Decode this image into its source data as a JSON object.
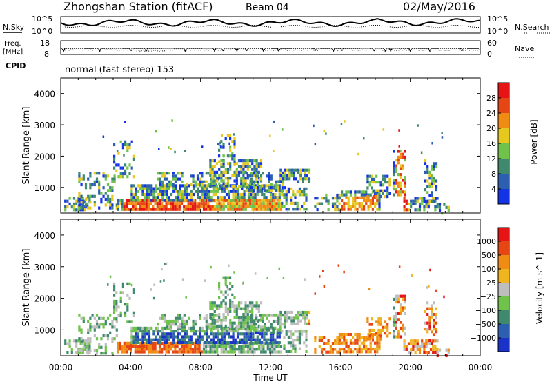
{
  "header": {
    "station": "Zhongshan Station (fitACF)",
    "beam": "Beam 04",
    "date": "02/May/2016"
  },
  "noise_panel": {
    "left_label": "N.Sky",
    "right_label": "N.Search",
    "top_tick": "10^5",
    "bottom_tick": "10^0"
  },
  "freq_panel": {
    "left_label_1": "Freq.",
    "left_label_2": "[MHz]",
    "right_label": "Nave",
    "left_ticks": [
      "18",
      "8"
    ],
    "right_ticks": [
      "60",
      "0"
    ]
  },
  "cpid": {
    "label": "CPID",
    "mode": "normal (fast stereo) 153"
  },
  "chart_data": [
    {
      "type": "heatmap",
      "name": "power",
      "ylabel": "Slant Range [km]",
      "xlabel": "Time UT",
      "ylim": [
        180,
        4500
      ],
      "y_ticks": [
        "1000",
        "2000",
        "3000",
        "4000"
      ],
      "x_ticks": [
        "00:00",
        "04:00",
        "08:00",
        "12:00",
        "16:00",
        "20:00",
        "00:00"
      ],
      "colorbar_label": "Power [dB]",
      "colorbar_ticks": [
        "4",
        "8",
        "12",
        "16",
        "20",
        "24",
        "28"
      ],
      "colors": [
        "#1432e6",
        "#2c5fb0",
        "#3f8a6e",
        "#6fc24a",
        "#e6c81e",
        "#f08c14",
        "#e64614",
        "#e61414"
      ]
    },
    {
      "type": "heatmap",
      "name": "velocity",
      "ylabel": "Slant Range [km]",
      "xlabel": "Time UT",
      "ylim": [
        180,
        4500
      ],
      "y_ticks": [
        "1000",
        "2000",
        "3000",
        "4000"
      ],
      "x_ticks": [
        "00:00",
        "04:00",
        "08:00",
        "12:00",
        "16:00",
        "20:00",
        "00:00"
      ],
      "colorbar_label": "Velocity [m s^-1]",
      "colorbar_ticks": [
        "1000",
        "500",
        "100",
        "25",
        "−25",
        "−100",
        "−500",
        "−1000"
      ],
      "colors": [
        "#1a32c8",
        "#2c5fb0",
        "#3f8a6e",
        "#6fc24a",
        "#bebebe",
        "#f0b41e",
        "#f08c14",
        "#e64614",
        "#e61414"
      ]
    }
  ]
}
